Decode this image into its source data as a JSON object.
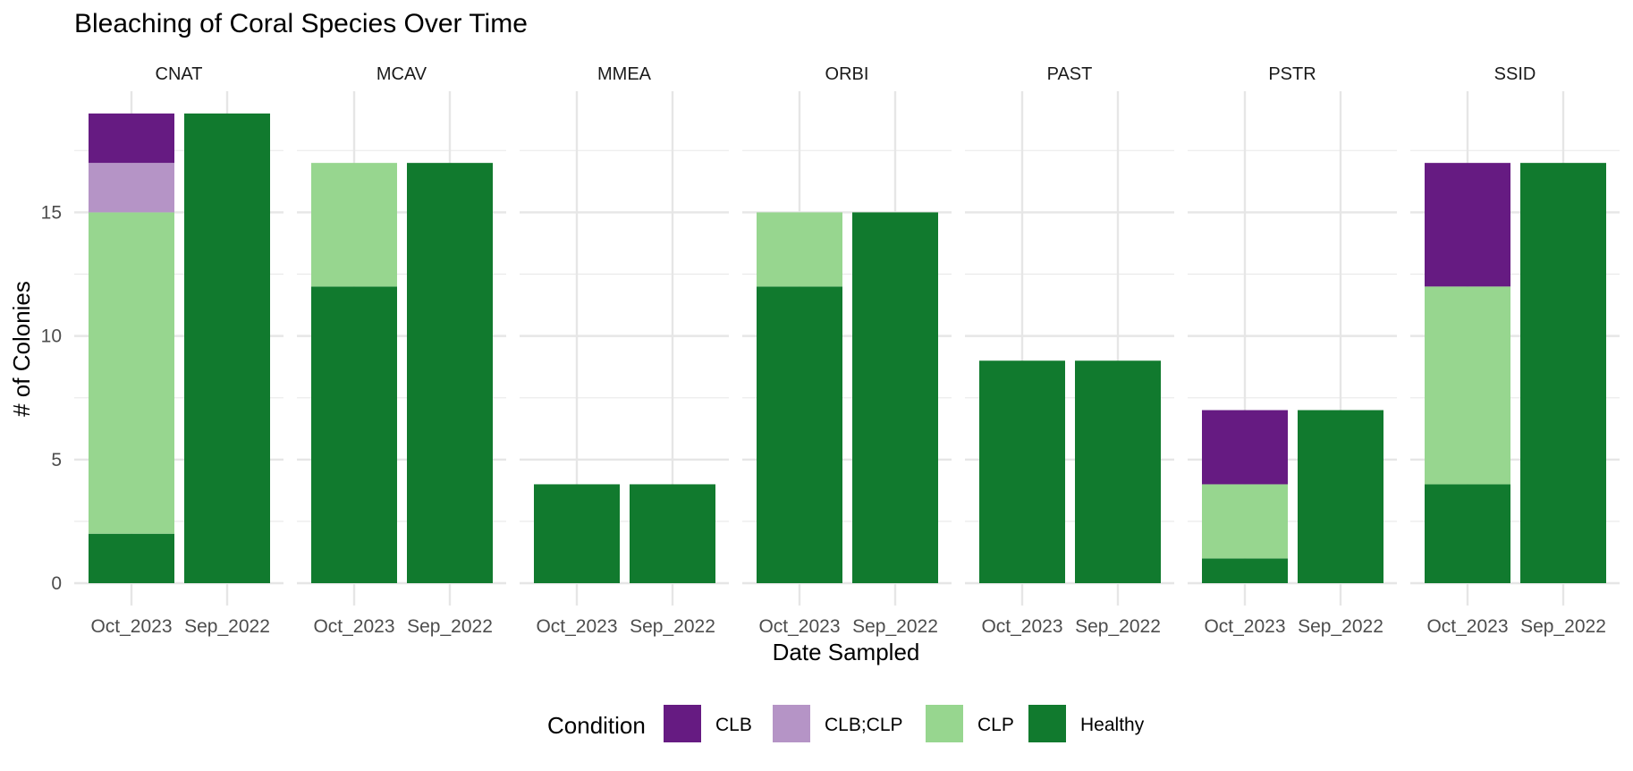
{
  "chart_data": {
    "type": "bar",
    "stacked": true,
    "faceted": true,
    "title": "Bleaching of Coral Species Over Time",
    "xlabel": "Date Sampled",
    "ylabel": "# of Colonies",
    "ylim": [
      0,
      19.9
    ],
    "y_ticks": [
      0,
      5,
      10,
      15
    ],
    "grid": true,
    "legend": {
      "title": "Condition",
      "position": "bottom",
      "entries": [
        "CLB",
        "CLB;CLP",
        "CLP",
        "Healthy"
      ]
    },
    "colors": {
      "CLB": "#661b82",
      "CLB;CLP": "#b594c6",
      "CLP": "#97d68f",
      "Healthy": "#117a2e"
    },
    "categories": [
      "Oct_2023",
      "Sep_2022"
    ],
    "stack_order": [
      "Healthy",
      "CLP",
      "CLB;CLP",
      "CLB"
    ],
    "facets": [
      {
        "name": "CNAT",
        "bars": [
          {
            "x": "Oct_2023",
            "Healthy": 2,
            "CLP": 13,
            "CLB;CLP": 2,
            "CLB": 2
          },
          {
            "x": "Sep_2022",
            "Healthy": 19
          }
        ]
      },
      {
        "name": "MCAV",
        "bars": [
          {
            "x": "Oct_2023",
            "Healthy": 12,
            "CLP": 5
          },
          {
            "x": "Sep_2022",
            "Healthy": 17
          }
        ]
      },
      {
        "name": "MMEA",
        "bars": [
          {
            "x": "Oct_2023",
            "Healthy": 4
          },
          {
            "x": "Sep_2022",
            "Healthy": 4
          }
        ]
      },
      {
        "name": "ORBI",
        "bars": [
          {
            "x": "Oct_2023",
            "Healthy": 12,
            "CLP": 3
          },
          {
            "x": "Sep_2022",
            "Healthy": 15
          }
        ]
      },
      {
        "name": "PAST",
        "bars": [
          {
            "x": "Oct_2023",
            "Healthy": 9
          },
          {
            "x": "Sep_2022",
            "Healthy": 9
          }
        ]
      },
      {
        "name": "PSTR",
        "bars": [
          {
            "x": "Oct_2023",
            "Healthy": 1,
            "CLP": 3,
            "CLB": 3
          },
          {
            "x": "Sep_2022",
            "Healthy": 7
          }
        ]
      },
      {
        "name": "SSID",
        "bars": [
          {
            "x": "Oct_2023",
            "Healthy": 4,
            "CLP": 8,
            "CLB": 5
          },
          {
            "x": "Sep_2022",
            "Healthy": 17
          }
        ]
      }
    ]
  }
}
